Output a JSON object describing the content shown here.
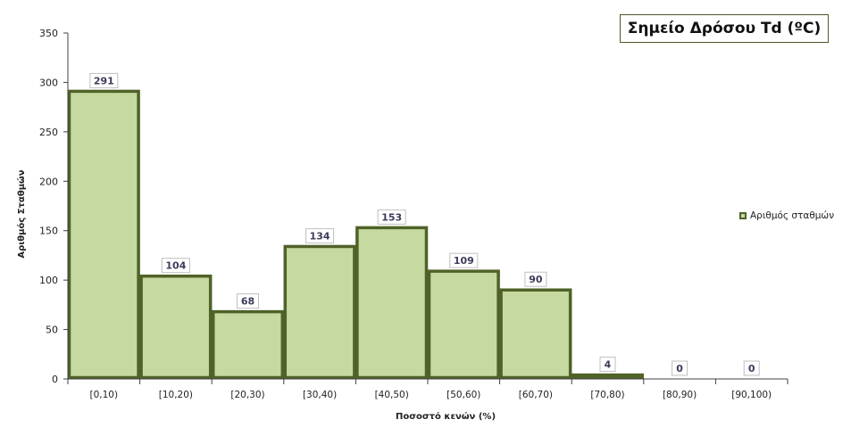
{
  "chart_data": {
    "type": "bar",
    "title": "Σημείο Δρόσου Td (ºC)",
    "xlabel": "Ποσοστό κενών (%)",
    "ylabel": "Αριθμός Σταθμών",
    "categories": [
      "[0,10)",
      "[10,20)",
      "[20,30)",
      "[30,40)",
      "[40,50)",
      "[50,60)",
      "[60,70)",
      "[70,80)",
      "[80,90)",
      "[90,100)"
    ],
    "series": [
      {
        "name": "Αριθμός σταθμών",
        "values": [
          291,
          104,
          68,
          134,
          153,
          109,
          90,
          4,
          0,
          0
        ]
      }
    ],
    "ylim": [
      0,
      350
    ],
    "yticks": [
      0,
      50,
      100,
      150,
      200,
      250,
      300,
      350
    ],
    "grid": false,
    "legend_position": "right",
    "colors": {
      "bar_fill": "#c6d9a0",
      "bar_border": "#4f6228",
      "title_border": "#4a5a28",
      "axis": "#404040"
    }
  }
}
